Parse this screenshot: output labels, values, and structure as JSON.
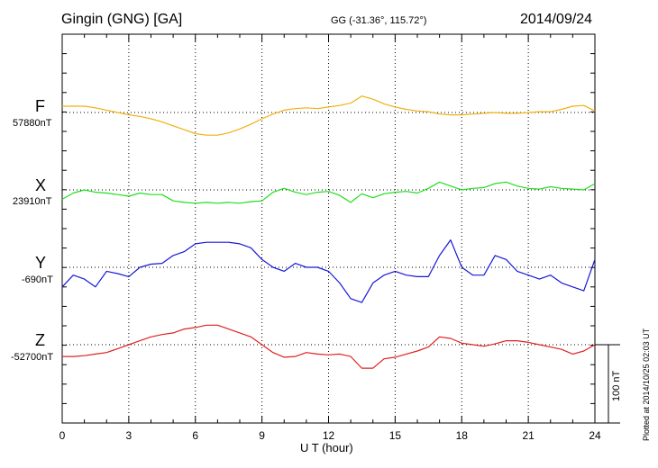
{
  "header": {
    "station": "Gingin (GNG)  [GA]",
    "coords": "GG (-31.36°, 115.72°)",
    "date": "2014/09/24"
  },
  "footer": {
    "xlabel": "U T (hour)",
    "plotted": "Plotted at 2014/10/25 02:03 UT",
    "scale_label": "100 nT"
  },
  "colors": {
    "F": "#f0b010",
    "X": "#20dd20",
    "Y": "#1818d8",
    "Z": "#e02020"
  },
  "chart_data": {
    "type": "line",
    "title": "Gingin (GNG)  [GA]",
    "xlabel": "U T (hour)",
    "xlim": [
      0,
      24
    ],
    "x_ticks": [
      "0",
      "3",
      "6",
      "9",
      "12",
      "15",
      "18",
      "21",
      "24"
    ],
    "scale_bar_nT": 100,
    "grid": true,
    "x": [
      0,
      0.5,
      1,
      1.5,
      2,
      2.5,
      3,
      3.5,
      4,
      4.5,
      5,
      5.5,
      6,
      6.5,
      7,
      7.5,
      8,
      8.5,
      9,
      9.5,
      10,
      10.5,
      11,
      11.5,
      12,
      12.5,
      13,
      13.5,
      14,
      14.5,
      15,
      15.5,
      16,
      16.5,
      17,
      17.5,
      18,
      18.5,
      19,
      19.5,
      20,
      20.5,
      21,
      21.5,
      22,
      22.5,
      23,
      23.5,
      24
    ],
    "series": [
      {
        "name": "F",
        "baseline": "57880nT",
        "values": [
          8,
          8,
          8,
          6,
          3,
          0,
          -3,
          -5,
          -8,
          -12,
          -17,
          -22,
          -27,
          -29,
          -29,
          -26,
          -21,
          -15,
          -8,
          -2,
          3,
          5,
          6,
          5,
          7,
          9,
          12,
          21,
          17,
          11,
          7,
          4,
          2,
          1,
          -2,
          -3,
          -3,
          -2,
          -1,
          0,
          -1,
          -1,
          0,
          1,
          1,
          4,
          8,
          9,
          2
        ]
      },
      {
        "name": "X",
        "baseline": "23910nT",
        "values": [
          -12,
          -4,
          0,
          -3,
          -4,
          -6,
          -8,
          -4,
          -6,
          -6,
          -14,
          -16,
          -17,
          -16,
          -17,
          -16,
          -17,
          -15,
          -14,
          -3,
          2,
          -3,
          -6,
          -3,
          -2,
          -7,
          -16,
          -5,
          -10,
          -5,
          -3,
          -2,
          -4,
          2,
          10,
          5,
          0,
          2,
          3,
          8,
          10,
          5,
          2,
          1,
          4,
          2,
          1,
          0,
          8
        ]
      },
      {
        "name": "Y",
        "baseline": "-690nT",
        "values": [
          -25,
          -10,
          -15,
          -25,
          -5,
          -8,
          -12,
          0,
          4,
          5,
          15,
          20,
          30,
          32,
          32,
          32,
          30,
          25,
          10,
          0,
          -5,
          5,
          0,
          0,
          -5,
          -20,
          -40,
          -45,
          -20,
          -10,
          -5,
          -10,
          -12,
          -12,
          15,
          35,
          0,
          -10,
          -10,
          15,
          10,
          -5,
          -10,
          -15,
          -10,
          -20,
          -25,
          -30,
          10
        ]
      },
      {
        "name": "Z",
        "baseline": "-52700nT",
        "values": [
          -15,
          -15,
          -14,
          -12,
          -10,
          -5,
          0,
          5,
          10,
          13,
          15,
          20,
          22,
          25,
          25,
          20,
          15,
          10,
          0,
          -10,
          -16,
          -15,
          -10,
          -12,
          -13,
          -12,
          -15,
          -30,
          -30,
          -18,
          -16,
          -12,
          -8,
          -3,
          10,
          8,
          2,
          0,
          -2,
          1,
          5,
          5,
          3,
          0,
          -3,
          -6,
          -12,
          -8,
          0
        ]
      }
    ]
  }
}
